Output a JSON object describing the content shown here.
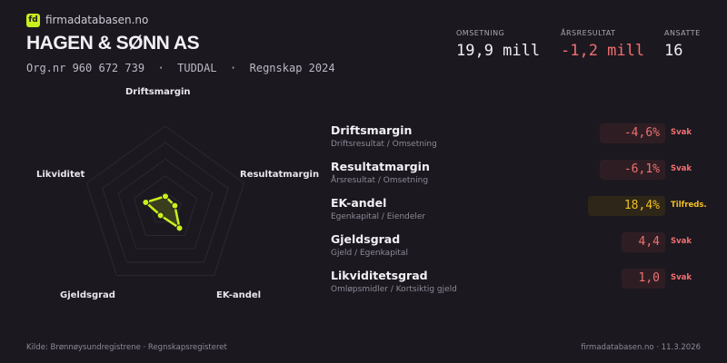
{
  "brand": {
    "logo": "fd",
    "name": "firmadatabasen.no"
  },
  "company": {
    "name": "HAGEN & SØNN AS",
    "subtitle": "Org.nr 960 672 739  ·  TUDDAL  ·  Regnskap 2024"
  },
  "kpis": [
    {
      "label": "OMSETNING",
      "value": "19,9 mill",
      "color": "#f2f0f4"
    },
    {
      "label": "ÅRSRESULTAT",
      "value": "-1,2 mill",
      "color": "#f07070"
    },
    {
      "label": "ANSATTE",
      "value": "16",
      "color": "#f2f0f4"
    }
  ],
  "radar": {
    "axes": [
      "Driftsmargin",
      "Resultatmargin",
      "EK-andel",
      "Gjeldsgrad",
      "Likviditet"
    ],
    "scores": [
      0.15,
      0.12,
      0.29,
      0.1,
      0.25
    ],
    "color": "#c8f01c"
  },
  "metrics": [
    {
      "name": "Driftsmargin",
      "desc": "Driftsresultat / Omsetning",
      "value": "-4,6%",
      "status": "Svak",
      "color": "#f07070"
    },
    {
      "name": "Resultatmargin",
      "desc": "Årsresultat / Omsetning",
      "value": "-6,1%",
      "status": "Svak",
      "color": "#f07070"
    },
    {
      "name": "EK-andel",
      "desc": "Egenkapital / Eiendeler",
      "value": "18,4%",
      "status": "Tilfreds.",
      "color": "#f0c020"
    },
    {
      "name": "Gjeldsgrad",
      "desc": "Gjeld / Egenkapital",
      "value": "4,4",
      "status": "Svak",
      "color": "#f07070"
    },
    {
      "name": "Likviditetsgrad",
      "desc": "Omløpsmidler / Kortsiktig gjeld",
      "value": "1,0",
      "status": "Svak",
      "color": "#f07070"
    }
  ],
  "footer": {
    "source": "Kilde: Brønnøysundregistrene · Regnskapsregisteret",
    "site": "firmadatabasen.no · 11.3.2026"
  }
}
